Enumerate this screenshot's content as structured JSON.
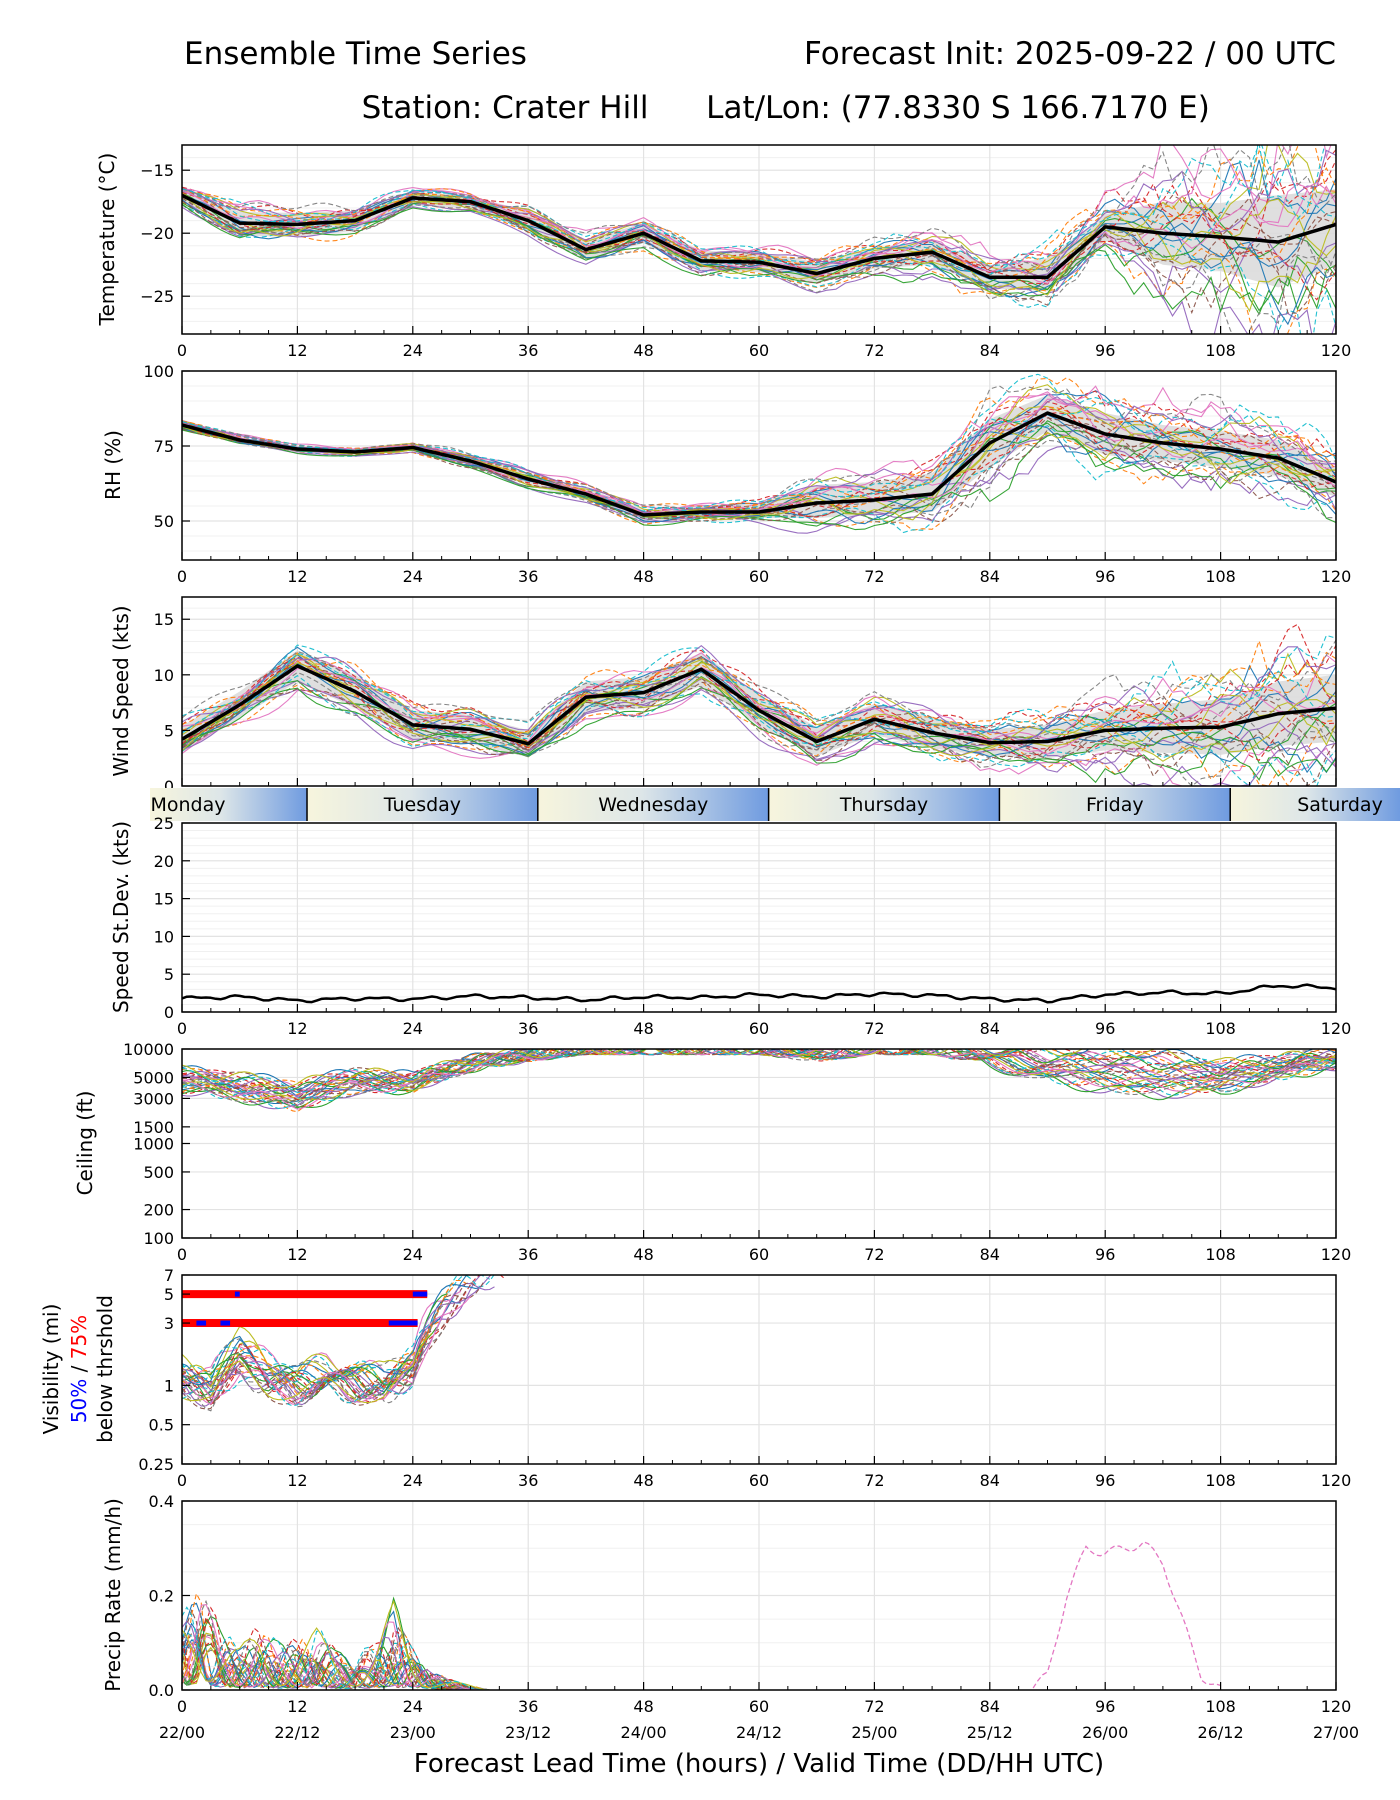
{
  "header": {
    "title_left": "Ensemble Time Series",
    "title_right": "Forecast Init: 2025-09-22 / 00 UTC",
    "station": "Station: Crater Hill",
    "latlon": "Lat/Lon: (77.8330 S 166.7170 E)"
  },
  "xaxis": {
    "title": "Forecast Lead Time (hours) / Valid Time (DD/HH UTC)",
    "ticks": [
      "0",
      "12",
      "24",
      "36",
      "48",
      "60",
      "72",
      "84",
      "96",
      "108",
      "120"
    ],
    "valid_times": [
      "22/00",
      "22/12",
      "23/00",
      "23/12",
      "24/00",
      "24/12",
      "25/00",
      "25/12",
      "26/00",
      "26/12",
      "27/00"
    ],
    "range": [
      0,
      120
    ]
  },
  "days": [
    "Monday",
    "Tuesday",
    "Wednesday",
    "Thursday",
    "Friday",
    "Saturday"
  ],
  "visibility_label": {
    "line1": "Visibility (mi)",
    "pct50": "50%",
    "slash": " / ",
    "pct75": "75%",
    "line3": "below thrshold"
  },
  "colors": {
    "members": [
      "#1f77b4",
      "#ff7f0e",
      "#2ca02c",
      "#d62728",
      "#9467bd",
      "#8c564b",
      "#e377c2",
      "#7f7f7f",
      "#bcbd22",
      "#17becf"
    ],
    "mean": "#000000",
    "spread": "#d9d9d9",
    "grid": "#e3e3e3",
    "pct50": "#0000ff",
    "pct75": "#ff0000",
    "day_gradient_start": "#f7f5dd",
    "day_gradient_end": "#6f9be0"
  },
  "chart_data": [
    {
      "id": "temperature",
      "type": "line",
      "ylabel": "Temperature (°C)",
      "ylim": [
        -28,
        -13
      ],
      "yticks": [
        -15,
        -20,
        -25
      ],
      "ytick_labels": [
        "−15",
        "−20",
        "−25"
      ],
      "x": [
        0,
        6,
        12,
        18,
        24,
        30,
        36,
        42,
        48,
        54,
        60,
        66,
        72,
        78,
        84,
        90,
        96,
        102,
        108,
        114,
        120
      ],
      "series": [
        {
          "name": "ensemble mean",
          "values": [
            -17,
            -19.2,
            -19.3,
            -19,
            -17.2,
            -17.5,
            -19,
            -21.3,
            -20,
            -22.2,
            -22.3,
            -23.2,
            -22,
            -21.5,
            -23.5,
            -23.5,
            -19.5,
            -20,
            -20.3,
            -20.7,
            -19.3
          ]
        },
        {
          "name": "spread upper",
          "values": [
            -16.5,
            -18.3,
            -18.4,
            -18.2,
            -16.7,
            -17,
            -18.3,
            -20.5,
            -19.2,
            -21.4,
            -21.5,
            -22.3,
            -21.2,
            -20.5,
            -22.6,
            -22,
            -18.5,
            -17.5,
            -17.6,
            -17,
            -16.5
          ]
        },
        {
          "name": "spread lower",
          "values": [
            -17.5,
            -20.2,
            -20.3,
            -19.8,
            -17.8,
            -18,
            -19.8,
            -22.1,
            -20.8,
            -23,
            -23.1,
            -24,
            -22.8,
            -22.5,
            -24.4,
            -24.6,
            -20.6,
            -22.5,
            -23,
            -24.3,
            -22.5
          ]
        }
      ]
    },
    {
      "id": "rh",
      "type": "line",
      "ylabel": "RH (%)",
      "ylim": [
        37,
        100
      ],
      "yticks": [
        100,
        75,
        50
      ],
      "ytick_labels": [
        "100",
        "75",
        "50"
      ],
      "x": [
        0,
        6,
        12,
        18,
        24,
        30,
        36,
        42,
        48,
        54,
        60,
        66,
        72,
        78,
        84,
        90,
        96,
        102,
        108,
        114,
        120
      ],
      "series": [
        {
          "name": "ensemble mean",
          "values": [
            82,
            77,
            74,
            73,
            74.5,
            70,
            64,
            59,
            52,
            53,
            53,
            56,
            57,
            59,
            76,
            86,
            79,
            76,
            74,
            71,
            63
          ]
        },
        {
          "name": "spread upper",
          "values": [
            83,
            78,
            75,
            74,
            75.5,
            72,
            66,
            61,
            54,
            55,
            56,
            62,
            63,
            66,
            84,
            92,
            86,
            82,
            80,
            77,
            68
          ]
        },
        {
          "name": "spread lower",
          "values": [
            81,
            76,
            73,
            72,
            73.5,
            68,
            62,
            57,
            50,
            51,
            51,
            51,
            52,
            53,
            68,
            80,
            72,
            70,
            68,
            65,
            58
          ]
        }
      ]
    },
    {
      "id": "wind",
      "type": "line",
      "ylabel": "Wind Speed (kts)",
      "ylim": [
        0,
        17
      ],
      "yticks": [
        0,
        5,
        10,
        15
      ],
      "ytick_labels": [
        "0",
        "5",
        "10",
        "15"
      ],
      "x": [
        0,
        6,
        12,
        18,
        24,
        30,
        36,
        42,
        48,
        54,
        60,
        66,
        72,
        78,
        84,
        90,
        96,
        102,
        108,
        114,
        120
      ],
      "series": [
        {
          "name": "ensemble mean",
          "values": [
            4.2,
            7.3,
            10.8,
            8.5,
            5.5,
            5.1,
            3.8,
            8,
            8.4,
            10.5,
            6.8,
            4,
            6,
            4.8,
            3.9,
            4,
            5,
            5.2,
            5.3,
            6.5,
            7
          ]
        },
        {
          "name": "spread upper",
          "values": [
            5.4,
            8.5,
            12.2,
            10,
            6.8,
            6.4,
            5,
            9.4,
            9.8,
            12,
            8.2,
            5.3,
            7.4,
            6.2,
            5.1,
            5.5,
            6.8,
            7.4,
            7.8,
            9.4,
            10
          ]
        },
        {
          "name": "spread lower",
          "values": [
            3,
            6.1,
            9.4,
            7,
            4.2,
            3.8,
            2.6,
            6.6,
            7,
            9,
            5.4,
            2.7,
            4.6,
            3.4,
            2.7,
            2.5,
            3.2,
            3,
            2.8,
            3.6,
            4
          ]
        }
      ]
    },
    {
      "id": "speed_stdev",
      "type": "line",
      "ylabel": "Speed St.Dev. (kts)",
      "ylim": [
        0,
        25
      ],
      "yticks": [
        0,
        5,
        10,
        15,
        20,
        25
      ],
      "ytick_labels": [
        "0",
        "5",
        "10",
        "15",
        "20",
        "25"
      ],
      "x": [
        0,
        6,
        12,
        18,
        24,
        30,
        36,
        42,
        48,
        54,
        60,
        66,
        72,
        78,
        84,
        90,
        96,
        102,
        108,
        114,
        120
      ],
      "series": [
        {
          "name": "speed standard deviation",
          "values": [
            1.8,
            2,
            1.5,
            1.8,
            1.7,
            2.1,
            1.9,
            1.6,
            2,
            1.9,
            2.3,
            2,
            2.4,
            2.2,
            1.7,
            1.5,
            2.3,
            2.6,
            2.4,
            3.5,
            3.2
          ]
        }
      ]
    },
    {
      "id": "ceiling",
      "type": "line",
      "ylabel": "Ceiling (ft)",
      "yscale": "log",
      "ylim": [
        100,
        10000
      ],
      "yticks": [
        10000,
        5000,
        3000,
        1500,
        1000,
        500,
        200,
        100
      ],
      "ytick_labels": [
        "10000",
        "5000",
        "3000",
        "1500",
        "1000",
        "500",
        "200",
        "100"
      ],
      "x": [
        0,
        6,
        12,
        18,
        24,
        30,
        36,
        42,
        48,
        54,
        60,
        66,
        72,
        78,
        84,
        90,
        96,
        102,
        108,
        114,
        120
      ],
      "series": [
        {
          "name": "members typical",
          "values": [
            6000,
            5200,
            4300,
            5800,
            5200,
            7800,
            9200,
            10000,
            10000,
            10000,
            10000,
            10000,
            10000,
            10000,
            10000,
            10000,
            10000,
            9200,
            7200,
            8200,
            9300
          ]
        },
        {
          "name": "member minimum",
          "values": [
            3800,
            3200,
            2400,
            3800,
            3900,
            6500,
            8300,
            10000,
            10000,
            10000,
            10000,
            8300,
            10000,
            10000,
            7000,
            5000,
            4000,
            3600,
            3800,
            5200,
            6800
          ]
        }
      ]
    },
    {
      "id": "visibility",
      "type": "line",
      "ylabel": "Visibility (mi)",
      "yscale": "log",
      "ylim": [
        0.25,
        7
      ],
      "yticks": [
        7,
        5,
        3,
        1,
        0.5,
        0.25
      ],
      "ytick_labels": [
        "7",
        "5",
        "3",
        "1",
        "0.5",
        "0.25"
      ],
      "x": [
        0,
        3,
        6,
        9,
        12,
        15,
        18,
        21,
        24,
        27,
        30,
        33,
        36
      ],
      "series": [
        {
          "name": "members typical",
          "values": [
            1.5,
            1.2,
            2.5,
            1.6,
            1.3,
            1.6,
            1.4,
            1.3,
            1.8,
            5,
            7,
            7,
            7
          ]
        },
        {
          "name": "member minimum",
          "values": [
            0.9,
            0.75,
            1.2,
            0.9,
            0.8,
            0.9,
            0.85,
            0.8,
            1.1,
            3,
            5,
            7,
            7
          ]
        }
      ],
      "threshold_bars": [
        {
          "threshold_mi": 5,
          "pct75_hours": [
            0,
            25.5
          ],
          "pct50_hours": [
            [
              5.5,
              6
            ],
            [
              24,
              25.5
            ]
          ]
        },
        {
          "threshold_mi": 3,
          "pct75_hours": [
            0,
            24.5
          ],
          "pct50_hours": [
            [
              1.5,
              2.5
            ],
            [
              4,
              5
            ],
            [
              21.5,
              24.5
            ]
          ]
        }
      ]
    },
    {
      "id": "precip",
      "type": "line",
      "ylabel": "Precip Rate (mm/h)",
      "ylim": [
        0,
        0.4
      ],
      "yticks": [
        0.4,
        0.2,
        0.0
      ],
      "ytick_labels": [
        "0.4",
        "0.2",
        "0.0"
      ],
      "x": [
        0,
        2,
        4,
        6,
        8,
        10,
        12,
        14,
        16,
        18,
        20,
        22,
        24,
        26,
        28,
        30,
        32
      ],
      "series": [
        {
          "name": "members typical",
          "values": [
            0.08,
            0.1,
            0.06,
            0.04,
            0.05,
            0.03,
            0.04,
            0.05,
            0.03,
            0.03,
            0.04,
            0.05,
            0.05,
            0.02,
            0.01,
            0,
            0
          ]
        },
        {
          "name": "member maximum",
          "values": [
            0.15,
            0.22,
            0.12,
            0.09,
            0.13,
            0.1,
            0.1,
            0.13,
            0.08,
            0.08,
            0.09,
            0.19,
            0.08,
            0.04,
            0.02,
            0.01,
            0
          ]
        }
      ],
      "late_event": {
        "name": "pink member precip",
        "x": [
          88,
          90,
          92,
          94,
          96,
          98,
          100,
          102,
          104,
          106,
          108
        ],
        "values": [
          0,
          0.03,
          0.2,
          0.3,
          0.29,
          0.3,
          0.31,
          0.27,
          0.15,
          0.03,
          0
        ]
      }
    }
  ]
}
